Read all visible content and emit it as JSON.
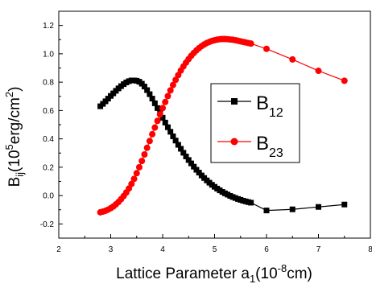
{
  "chart_data": {
    "type": "line",
    "xlim": [
      2,
      8
    ],
    "ylim": [
      -0.3,
      1.3
    ],
    "x_ticks": [
      "2",
      "3",
      "4",
      "5",
      "6",
      "7",
      "8"
    ],
    "y_ticks": [
      "-0.2",
      "0.0",
      "0.2",
      "0.4",
      "0.6",
      "0.8",
      "1.0",
      "1.2"
    ],
    "xlabel": {
      "main": "Lattice Parameter a",
      "sub": "1",
      "paren_open": "(10",
      "sup": "-8",
      "unit": "cm)"
    },
    "ylabel": {
      "main": "B",
      "sub": "ij",
      "paren_open": "(10",
      "sup": "5",
      "unit": "erg/cm",
      "sup2": "2",
      "close": ")"
    },
    "grid": false,
    "legend": {
      "position": "center-right"
    },
    "series": [
      {
        "name_main": "B",
        "name_sub": "12",
        "color": "#000000",
        "marker": "square",
        "x": [
          2.8,
          2.85,
          2.9,
          2.95,
          3.0,
          3.05,
          3.1,
          3.15,
          3.2,
          3.25,
          3.3,
          3.35,
          3.4,
          3.45,
          3.5,
          3.55,
          3.6,
          3.65,
          3.7,
          3.75,
          3.8,
          3.85,
          3.9,
          3.95,
          4.0,
          4.05,
          4.1,
          4.15,
          4.2,
          4.25,
          4.3,
          4.35,
          4.4,
          4.45,
          4.5,
          4.55,
          4.6,
          4.65,
          4.7,
          4.75,
          4.8,
          4.85,
          4.9,
          4.95,
          5.0,
          5.05,
          5.1,
          5.15,
          5.2,
          5.25,
          5.3,
          5.35,
          5.4,
          5.45,
          5.5,
          5.55,
          5.6,
          5.65,
          5.7,
          6.0,
          6.5,
          7.0,
          7.5
        ],
        "y": [
          0.63,
          0.647,
          0.665,
          0.684,
          0.703,
          0.721,
          0.739,
          0.756,
          0.772,
          0.786,
          0.798,
          0.807,
          0.812,
          0.812,
          0.81,
          0.803,
          0.789,
          0.769,
          0.744,
          0.715,
          0.684,
          0.651,
          0.617,
          0.583,
          0.549,
          0.515,
          0.482,
          0.45,
          0.418,
          0.388,
          0.358,
          0.33,
          0.302,
          0.276,
          0.251,
          0.227,
          0.204,
          0.182,
          0.162,
          0.142,
          0.124,
          0.107,
          0.091,
          0.076,
          0.062,
          0.049,
          0.037,
          0.026,
          0.016,
          0.007,
          -0.002,
          -0.01,
          -0.017,
          -0.024,
          -0.03,
          -0.036,
          -0.041,
          -0.046,
          -0.05,
          -0.105,
          -0.097,
          -0.08,
          -0.063
        ]
      },
      {
        "name_main": "B",
        "name_sub": "23",
        "color": "#ff0000",
        "marker": "circle",
        "x": [
          2.8,
          2.85,
          2.9,
          2.95,
          3.0,
          3.05,
          3.1,
          3.15,
          3.2,
          3.25,
          3.3,
          3.35,
          3.4,
          3.45,
          3.5,
          3.55,
          3.6,
          3.65,
          3.7,
          3.75,
          3.8,
          3.85,
          3.9,
          3.95,
          4.0,
          4.05,
          4.1,
          4.15,
          4.2,
          4.25,
          4.3,
          4.35,
          4.4,
          4.45,
          4.5,
          4.55,
          4.6,
          4.65,
          4.7,
          4.75,
          4.8,
          4.85,
          4.9,
          4.95,
          5.0,
          5.05,
          5.1,
          5.15,
          5.2,
          5.25,
          5.3,
          5.35,
          5.4,
          5.45,
          5.5,
          5.55,
          5.6,
          5.65,
          5.7,
          6.0,
          6.5,
          7.0,
          7.5
        ],
        "y": [
          -0.118,
          -0.113,
          -0.107,
          -0.099,
          -0.089,
          -0.077,
          -0.062,
          -0.045,
          -0.025,
          -0.003,
          0.022,
          0.05,
          0.082,
          0.118,
          0.158,
          0.2,
          0.244,
          0.29,
          0.337,
          0.385,
          0.433,
          0.48,
          0.527,
          0.573,
          0.617,
          0.66,
          0.702,
          0.742,
          0.78,
          0.816,
          0.85,
          0.882,
          0.911,
          0.938,
          0.963,
          0.986,
          1.006,
          1.024,
          1.04,
          1.054,
          1.066,
          1.076,
          1.084,
          1.091,
          1.096,
          1.1,
          1.103,
          1.104,
          1.104,
          1.103,
          1.101,
          1.099,
          1.096,
          1.092,
          1.088,
          1.084,
          1.08,
          1.076,
          1.072,
          1.035,
          0.96,
          0.88,
          0.81
        ]
      }
    ]
  }
}
